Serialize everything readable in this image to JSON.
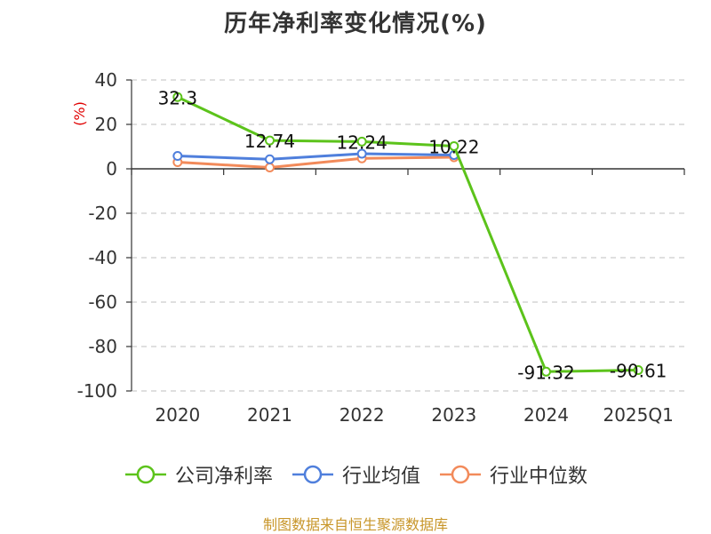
{
  "title": "历年净利率变化情况(%)",
  "unit_label": "(%)",
  "source": "制图数据来自恒生聚源数据库",
  "chart_data": {
    "type": "line",
    "title": "历年净利率变化情况(%)",
    "ylabel": "(%)",
    "xlabel": "",
    "categories": [
      "2020",
      "2021",
      "2022",
      "2023",
      "2024",
      "2025Q1"
    ],
    "ylim": [
      -100,
      40
    ],
    "yticks": [
      40,
      20,
      0,
      -20,
      -40,
      -60,
      -80,
      -100
    ],
    "grid": true,
    "legend_position": "bottom",
    "series": [
      {
        "name": "公司净利率",
        "color": "#5cc31b",
        "values": [
          32.3,
          12.74,
          12.24,
          10.22,
          -91.32,
          -90.61
        ],
        "labels": [
          "32.3",
          "12.74",
          "12.24",
          "10.22",
          "-91.32",
          "-90.61"
        ]
      },
      {
        "name": "行业均值",
        "color": "#4f7fdc",
        "values": [
          5.8,
          4.3,
          6.8,
          6.2,
          null,
          null
        ],
        "labels": []
      },
      {
        "name": "行业中位数",
        "color": "#f28a5a",
        "values": [
          3.0,
          0.6,
          4.7,
          5.2,
          null,
          null
        ],
        "labels": []
      }
    ]
  }
}
